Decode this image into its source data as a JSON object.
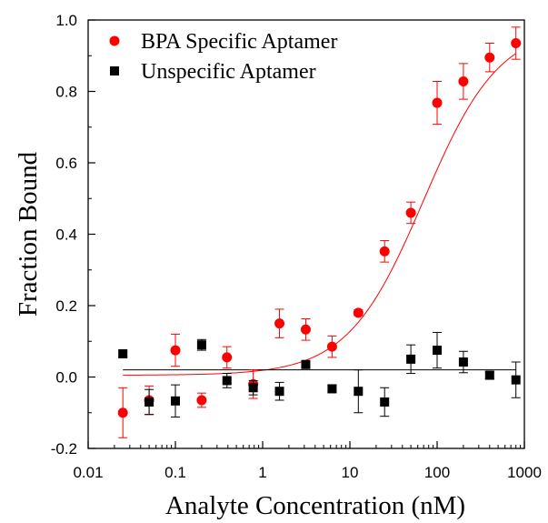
{
  "chart_data": {
    "type": "scatter",
    "xlabel": "Analyte Concentration (nM)",
    "ylabel": "Fraction Bound",
    "x_scale": "log",
    "xlim": [
      0.01,
      1000
    ],
    "ylim": [
      -0.2,
      1.0
    ],
    "x_ticks": [
      0.01,
      0.1,
      1,
      10,
      100,
      1000
    ],
    "x_tick_labels": [
      "0.01",
      "0.1",
      "1",
      "10",
      "100",
      "1000"
    ],
    "y_ticks": [
      -0.2,
      0.0,
      0.2,
      0.4,
      0.6,
      0.8,
      1.0
    ],
    "y_tick_labels": [
      "-0.2",
      "0.0",
      "0.2",
      "0.4",
      "0.6",
      "0.8",
      "1.0"
    ],
    "grid": false,
    "legend_position": "top-left",
    "series": [
      {
        "name": "BPA Specific Aptamer",
        "marker": "circle",
        "color": "#ff0000",
        "x": [
          0.025,
          0.05,
          0.1,
          0.2,
          0.39,
          0.78,
          1.56,
          3.12,
          6.25,
          12.5,
          25,
          50,
          100,
          200,
          400,
          800
        ],
        "y": [
          -0.1,
          -0.065,
          0.075,
          -0.065,
          0.055,
          -0.02,
          0.15,
          0.133,
          0.085,
          0.18,
          0.352,
          0.46,
          0.768,
          0.828,
          0.895,
          0.935
        ],
        "err": [
          0.07,
          0.04,
          0.045,
          0.02,
          0.03,
          0.04,
          0.04,
          0.03,
          0.03,
          0.008,
          0.03,
          0.03,
          0.06,
          0.05,
          0.04,
          0.045
        ],
        "fit": {
          "type": "sigmoid",
          "bottom": 0.005,
          "top": 0.985,
          "ec50": 70,
          "hill": 1.0
        }
      },
      {
        "name": "Unspecific Aptamer",
        "marker": "square",
        "color": "#000000",
        "x": [
          0.025,
          0.05,
          0.1,
          0.2,
          0.39,
          0.78,
          1.56,
          3.12,
          6.25,
          12.5,
          25,
          50,
          100,
          200,
          400,
          800
        ],
        "y": [
          0.065,
          -0.07,
          -0.067,
          0.09,
          -0.01,
          -0.03,
          -0.04,
          0.035,
          -0.033,
          -0.04,
          -0.07,
          0.05,
          0.075,
          0.042,
          0.005,
          -0.008
        ],
        "err": [
          0.008,
          0.035,
          0.045,
          0.015,
          0.02,
          0.02,
          0.025,
          0.008,
          0.01,
          0.06,
          0.04,
          0.04,
          0.05,
          0.03,
          0.01,
          0.05
        ],
        "fit": {
          "type": "constant",
          "value": 0.02
        }
      }
    ]
  }
}
